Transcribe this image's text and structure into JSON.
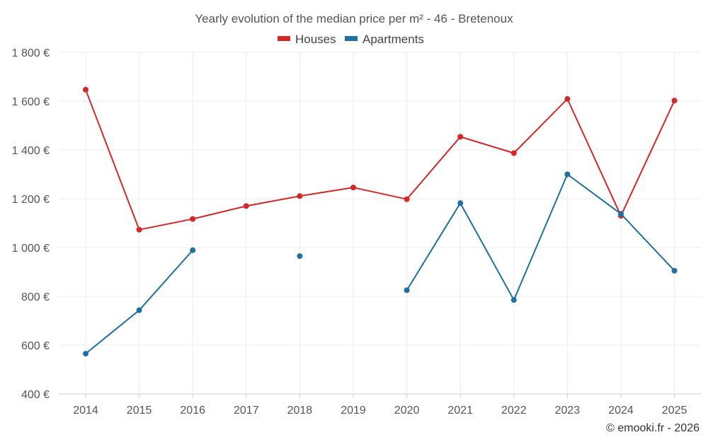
{
  "chart_data": {
    "type": "line",
    "title": "Yearly evolution of the median price per m² - 46 - Bretenoux",
    "categories": [
      "2014",
      "2015",
      "2016",
      "2017",
      "2018",
      "2019",
      "2020",
      "2021",
      "2022",
      "2023",
      "2024",
      "2025"
    ],
    "series": [
      {
        "name": "Houses",
        "color": "#d62728",
        "values": [
          1647,
          1073,
          1117,
          1170,
          1211,
          1246,
          1198,
          1454,
          1387,
          1609,
          1130,
          1602
        ]
      },
      {
        "name": "Apartments",
        "color": "#1f6fa0",
        "values": [
          565,
          743,
          989,
          null,
          965,
          null,
          825,
          1182,
          785,
          1300,
          1138,
          905
        ]
      }
    ],
    "ylim": [
      400,
      1800
    ],
    "yticks": [
      400,
      600,
      800,
      1000,
      1200,
      1400,
      1600,
      1800
    ],
    "ytick_labels": [
      "400 €",
      "600 €",
      "800 €",
      "1 000 €",
      "1 200 €",
      "1 400 €",
      "1 600 €",
      "1 800 €"
    ],
    "xlabel": "",
    "ylabel": "",
    "grid": true,
    "legend_position": "top-center"
  },
  "credit": "© emooki.fr - 2026"
}
